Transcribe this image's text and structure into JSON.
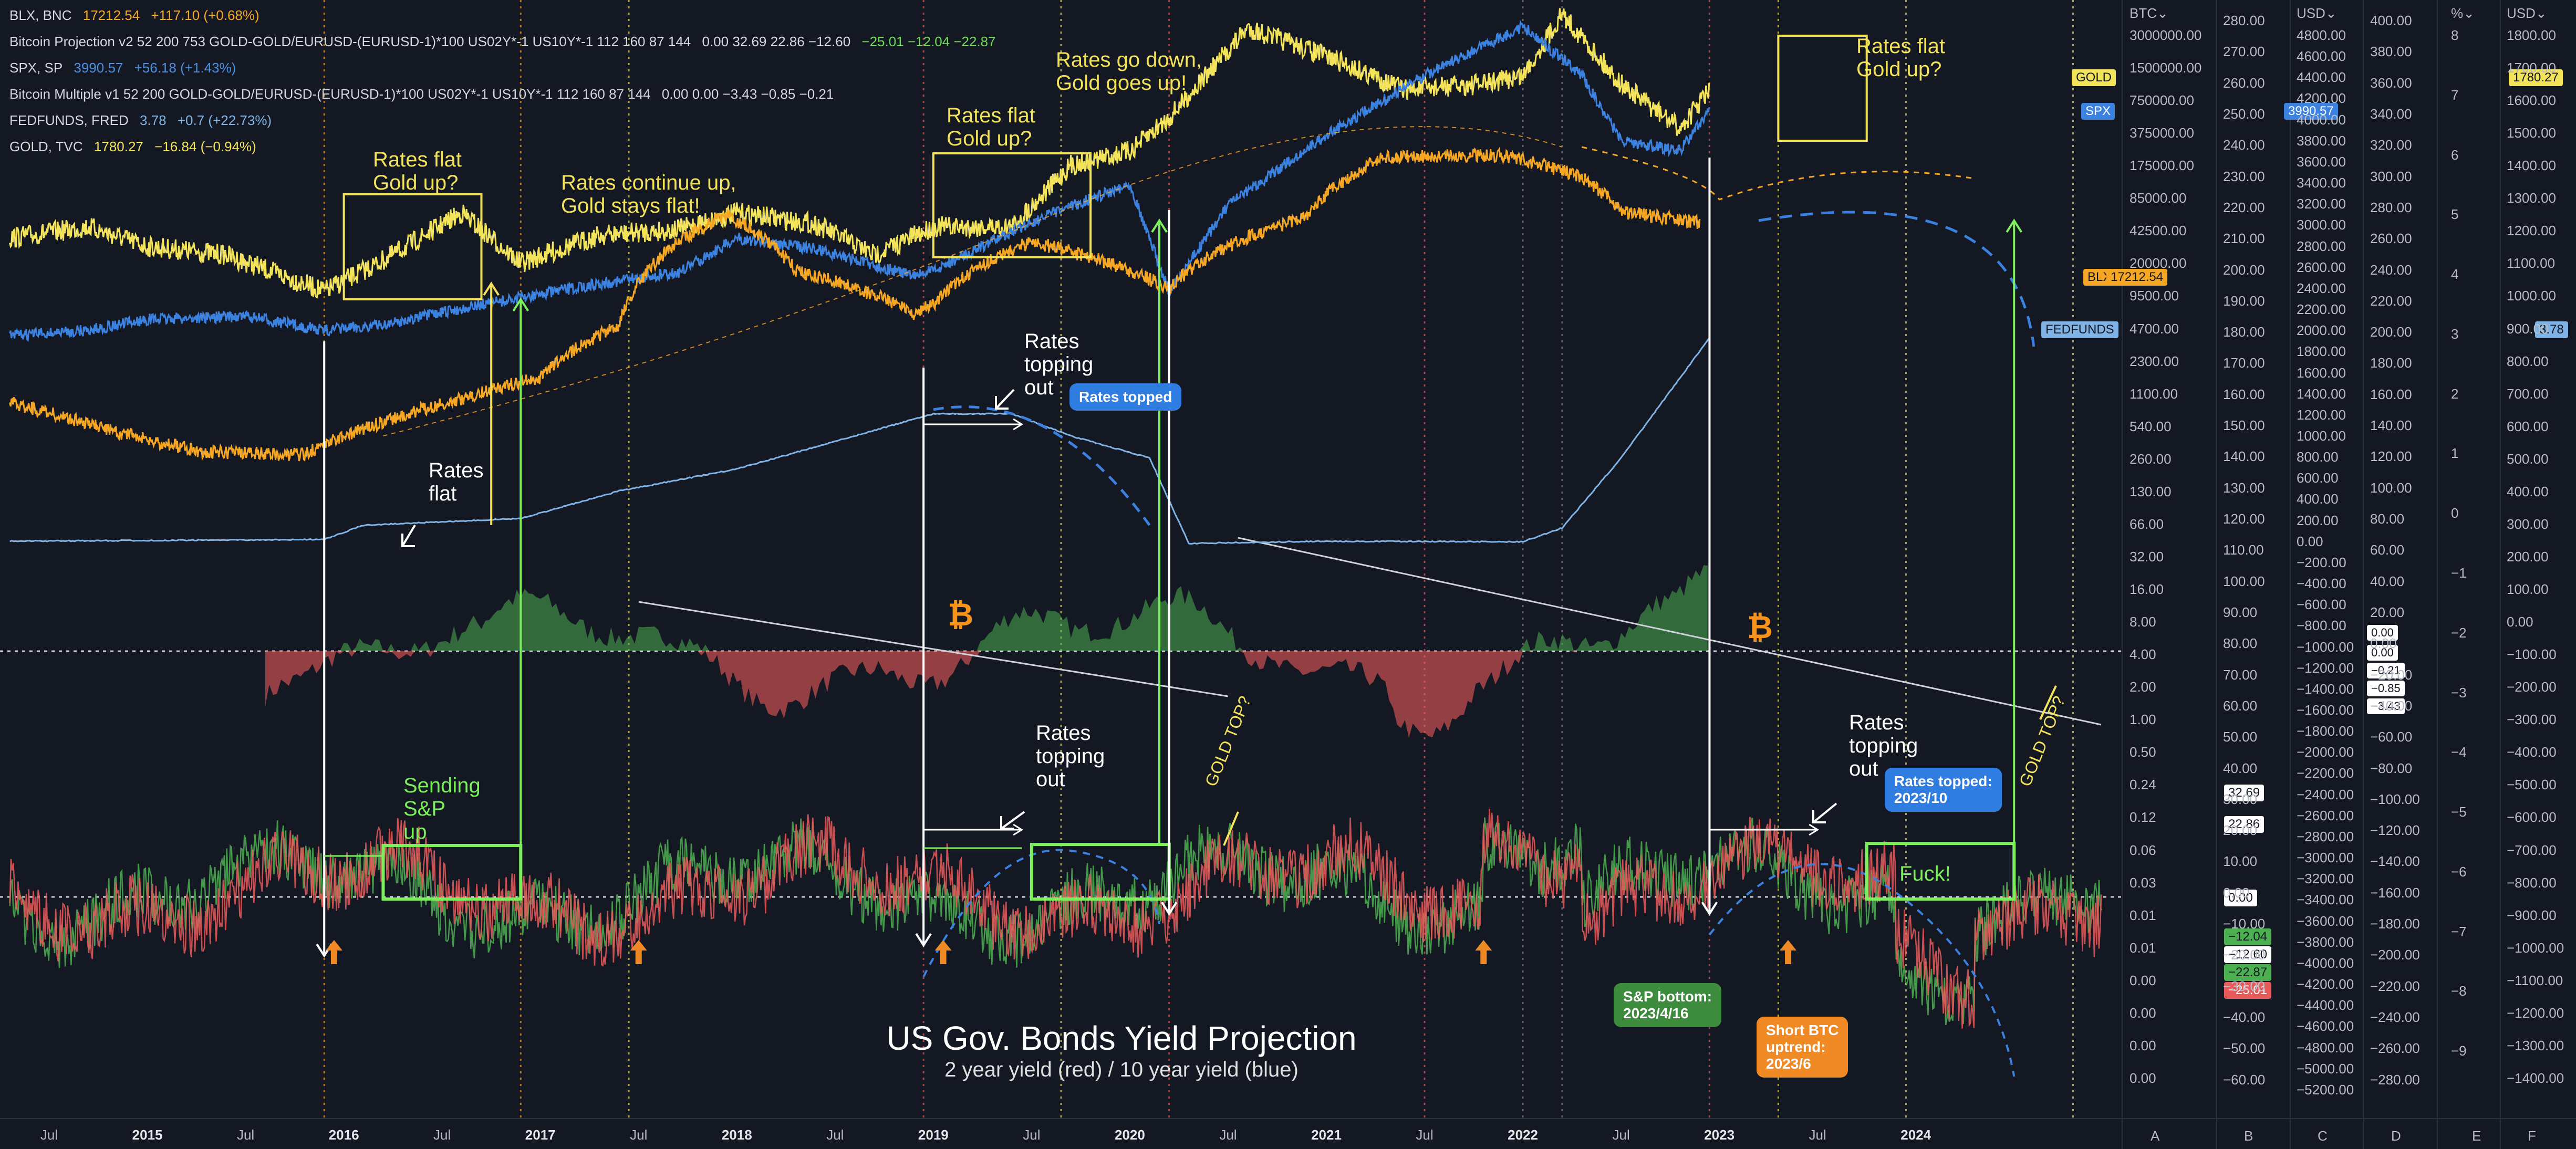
{
  "legend": [
    {
      "name": "BLX, BNC",
      "value": "17212.54",
      "change": "+117.10 (+0.68%)",
      "color": "#f5a623"
    },
    {
      "name": "Bitcoin Projection v2 52 200 753 GOLD-GOLD/EURUSD-(EURUSD-1)*100 US02Y*-1 US10Y*-1 112 160 87 144",
      "value": "0.00  32.69  22.86  −12.60",
      "change": "−25.01  −12.04  −22.87",
      "color": "#d6d8de"
    },
    {
      "name": "SPX, SP",
      "value": "3990.57",
      "change": "+56.18 (+1.43%)",
      "color": "#4a90e2"
    },
    {
      "name": "Bitcoin Multiple v1 52 200 GOLD-GOLD/EURUSD-(EURUSD-1)*100 US02Y*-1 US10Y*-1 112 160 87 144",
      "value": "0.00  0.00  −3.43  −0.85  −0.21",
      "change": "",
      "color": "#d6d8de"
    },
    {
      "name": "FEDFUNDS, FRED",
      "value": "3.78",
      "change": "+0.7 (+22.73%)",
      "color": "#7fb3e6"
    },
    {
      "name": "GOLD, TVC",
      "value": "1780.27",
      "change": "−16.84 (−0.94%)",
      "color": "#f2e35a"
    }
  ],
  "annotations": {
    "rates_flat_gold_up_1": "Rates flat\nGold up?",
    "rates_continue_up": "Rates continue up,\nGold stays flat!",
    "rates_flat_gold_up_2": "Rates flat\nGold up?",
    "rates_go_down": "Rates go down,\nGold goes up!",
    "rates_flat_gold_up_3": "Rates flat\nGold up?",
    "rates_flat": "Rates\nflat",
    "rates_topping_out_1": "Rates\ntopping\nout",
    "rates_topped": "Rates topped",
    "rates_topping_out_2": "Rates\ntopping\nout",
    "rates_topping_out_3": "Rates\ntopping\nout",
    "rates_topped_2023": "Rates topped:\n2023/10",
    "sending_sp_up": "Sending\nS&P\nup",
    "fuck": "Fuck!",
    "gold_top_1": "GOLD TOP?",
    "gold_top_2": "GOLD TOP?",
    "sp_bottom": "S&P bottom:\n2023/4/16",
    "short_btc": "Short BTC\nuptrend:\n2023/6"
  },
  "title": "US Gov. Bonds Yield Projection",
  "subtitle": "2 year yield (red) / 10 year yield (blue)",
  "colors": {
    "background": "#141823",
    "gold": "#f2e35a",
    "spx": "#3b82e0",
    "blx": "#f5a623",
    "fedfunds": "#7fb3e6",
    "bull": "#4caf50",
    "bear": "#e85a5a",
    "highlight_green": "#7cf05a",
    "callout_blue": "#2f7de1",
    "callout_green": "#3d8b3d",
    "callout_orange": "#f08a24"
  },
  "price_tags": {
    "gold": {
      "label": "GOLD",
      "value": "1780.27"
    },
    "spx": {
      "label": "SPX",
      "value": "3990.57"
    },
    "blx": {
      "label": "BLX",
      "value": "17212.54"
    },
    "fedfunds": {
      "label": "FEDFUNDS",
      "value": "3.78"
    }
  },
  "indicator_values": [
    "32.69",
    "22.86",
    "0.00",
    "−12.04",
    "−12.60",
    "−22.87",
    "−25.01"
  ],
  "multiple_values": [
    "0.00",
    "0.00",
    "−0.21",
    "−0.85",
    "−3.43"
  ],
  "scales": [
    {
      "header": "BTC",
      "ticks": [
        "3000000.00",
        "1500000.00",
        "750000.00",
        "375000.00",
        "175000.00",
        "85000.00",
        "42500.00",
        "20000.00",
        "9500.00",
        "4700.00",
        "2300.00",
        "1100.00",
        "540.00",
        "260.00",
        "130.00",
        "66.00",
        "32.00",
        "16.00",
        "8.00",
        "4.00",
        "2.00",
        "1.00",
        "0.50",
        "0.24",
        "0.12",
        "0.06",
        "0.03",
        "0.01",
        "0.01",
        "0.00",
        "0.00",
        "0.00",
        "0.00"
      ],
      "footer": "A"
    },
    {
      "header": "",
      "ticks": [
        "280.00",
        "270.00",
        "260.00",
        "250.00",
        "240.00",
        "230.00",
        "220.00",
        "210.00",
        "200.00",
        "190.00",
        "180.00",
        "170.00",
        "160.00",
        "150.00",
        "140.00",
        "130.00",
        "120.00",
        "110.00",
        "100.00",
        "90.00",
        "80.00",
        "70.00",
        "60.00",
        "50.00",
        "40.00",
        "30.00",
        "20.00",
        "10.00",
        "0.00",
        "−10.00",
        "−20.00",
        "−30.00",
        "−40.00",
        "−50.00",
        "−60.00"
      ],
      "footer": "B"
    },
    {
      "header": "USD",
      "ticks": [
        "4800.00",
        "4600.00",
        "4400.00",
        "4200.00",
        "4000.00",
        "3800.00",
        "3600.00",
        "3400.00",
        "3200.00",
        "3000.00",
        "2800.00",
        "2600.00",
        "2400.00",
        "2200.00",
        "2000.00",
        "1800.00",
        "1600.00",
        "1400.00",
        "1200.00",
        "1000.00",
        "800.00",
        "600.00",
        "400.00",
        "200.00",
        "0.00",
        "−200.00",
        "−400.00",
        "−600.00",
        "−800.00",
        "−1000.00",
        "−1200.00",
        "−1400.00",
        "−1600.00",
        "−1800.00",
        "−2000.00",
        "−2200.00",
        "−2400.00",
        "−2600.00",
        "−2800.00",
        "−3000.00",
        "−3200.00",
        "−3400.00",
        "−3600.00",
        "−3800.00",
        "−4000.00",
        "−4200.00",
        "−4400.00",
        "−4600.00",
        "−4800.00",
        "−5000.00",
        "−5200.00"
      ],
      "footer": "C"
    },
    {
      "header": "",
      "ticks": [
        "400.00",
        "380.00",
        "360.00",
        "340.00",
        "320.00",
        "300.00",
        "280.00",
        "260.00",
        "240.00",
        "220.00",
        "200.00",
        "180.00",
        "160.00",
        "140.00",
        "120.00",
        "100.00",
        "80.00",
        "60.00",
        "40.00",
        "20.00",
        "0.00",
        "−20.00",
        "−40.00",
        "−60.00",
        "−80.00",
        "−100.00",
        "−120.00",
        "−140.00",
        "−160.00",
        "−180.00",
        "−200.00",
        "−220.00",
        "−240.00",
        "−260.00",
        "−280.00"
      ],
      "footer": "D"
    },
    {
      "header": "%",
      "ticks": [
        "8",
        "7",
        "6",
        "5",
        "4",
        "3",
        "2",
        "1",
        "0",
        "−1",
        "−2",
        "−3",
        "−4",
        "−5",
        "−6",
        "−7",
        "−8",
        "−9"
      ],
      "footer": "E"
    },
    {
      "header": "USD",
      "ticks": [
        "1800.00",
        "1700.00",
        "1600.00",
        "1500.00",
        "1400.00",
        "1300.00",
        "1200.00",
        "1100.00",
        "1000.00",
        "900.00",
        "800.00",
        "700.00",
        "600.00",
        "500.00",
        "400.00",
        "300.00",
        "200.00",
        "100.00",
        "0.00",
        "−100.00",
        "−200.00",
        "−300.00",
        "−400.00",
        "−500.00",
        "−600.00",
        "−700.00",
        "−800.00",
        "−900.00",
        "−1000.00",
        "−1100.00",
        "−1200.00",
        "−1300.00",
        "−1400.00"
      ],
      "footer": "F"
    }
  ],
  "chart_data": {
    "type": "line",
    "title": "US Gov. Bonds Yield Projection",
    "subtitle": "2 year yield (red) / 10 year yield (blue)",
    "xlabel": "",
    "ylabel": "",
    "x_ticks": [
      {
        "label": "Jul",
        "year": false
      },
      {
        "label": "2015",
        "year": true
      },
      {
        "label": "Jul",
        "year": false
      },
      {
        "label": "2016",
        "year": true
      },
      {
        "label": "Jul",
        "year": false
      },
      {
        "label": "2017",
        "year": true
      },
      {
        "label": "Jul",
        "year": false
      },
      {
        "label": "2018",
        "year": true
      },
      {
        "label": "Jul",
        "year": false
      },
      {
        "label": "2019",
        "year": true
      },
      {
        "label": "Jul",
        "year": false
      },
      {
        "label": "2020",
        "year": true
      },
      {
        "label": "Jul",
        "year": false
      },
      {
        "label": "2021",
        "year": true
      },
      {
        "label": "Jul",
        "year": false
      },
      {
        "label": "2022",
        "year": true
      },
      {
        "label": "Jul",
        "year": false
      },
      {
        "label": "2023",
        "year": true
      },
      {
        "label": "Jul",
        "year": false
      },
      {
        "label": "2024",
        "year": true
      }
    ],
    "x_range": [
      2014.25,
      2025.05
    ],
    "x_tick_positions": [
      2014.5,
      2015.0,
      2015.5,
      2016.0,
      2016.5,
      2017.0,
      2017.5,
      2018.0,
      2018.5,
      2019.0,
      2019.5,
      2020.0,
      2020.5,
      2021.0,
      2021.5,
      2022.0,
      2022.5,
      2023.0,
      2023.5,
      2024.0
    ],
    "series": [
      {
        "name": "GOLD, TVC",
        "unit": "USD",
        "x": [
          2014.3,
          2014.7,
          2015.0,
          2015.4,
          2015.9,
          2016.2,
          2016.6,
          2016.9,
          2017.3,
          2017.7,
          2018.0,
          2018.4,
          2018.7,
          2019.0,
          2019.4,
          2019.7,
          2020.0,
          2020.2,
          2020.6,
          2021.0,
          2021.4,
          2021.8,
          2022.0,
          2022.2,
          2022.5,
          2022.8,
          2022.95
        ],
        "y": [
          1250,
          1290,
          1220,
          1190,
          1060,
          1170,
          1340,
          1160,
          1260,
          1280,
          1340,
          1300,
          1190,
          1290,
          1290,
          1510,
          1560,
          1680,
          2000,
          1900,
          1780,
          1800,
          1830,
          2050,
          1800,
          1640,
          1780
        ]
      },
      {
        "name": "SPX, SP",
        "unit": "USD",
        "x": [
          2014.3,
          2014.7,
          2015.0,
          2015.5,
          2015.9,
          2016.2,
          2016.6,
          2016.9,
          2017.3,
          2017.7,
          2018.0,
          2018.4,
          2018.9,
          2019.0,
          2019.5,
          2020.0,
          2020.2,
          2020.5,
          2021.0,
          2021.5,
          2022.0,
          2022.3,
          2022.5,
          2022.8,
          2022.95
        ],
        "y": [
          1900,
          1950,
          2050,
          2080,
          1950,
          2000,
          2150,
          2250,
          2380,
          2480,
          2800,
          2700,
          2450,
          2500,
          2950,
          3300,
          2300,
          3100,
          3750,
          4300,
          4750,
          4300,
          3700,
          3600,
          3990
        ]
      },
      {
        "name": "BLX, BNC",
        "unit": "USD",
        "x": [
          2014.3,
          2014.7,
          2015.0,
          2015.3,
          2015.8,
          2016.2,
          2016.6,
          2017.0,
          2017.4,
          2017.95,
          2018.3,
          2018.9,
          2019.0,
          2019.5,
          2020.2,
          2020.9,
          2021.3,
          2021.9,
          2022.3,
          2022.5,
          2022.9
        ],
        "y": [
          600,
          400,
          300,
          240,
          230,
          420,
          650,
          970,
          2500,
          19500,
          7000,
          3200,
          3700,
          12000,
          5000,
          19000,
          58000,
          60000,
          40000,
          21000,
          17212
        ]
      },
      {
        "name": "FEDFUNDS, FRED",
        "unit": "%",
        "x": [
          2014.3,
          2015.9,
          2016.1,
          2016.9,
          2017.4,
          2018.0,
          2018.5,
          2019.0,
          2019.4,
          2019.7,
          2020.1,
          2020.3,
          2021.0,
          2022.0,
          2022.2,
          2022.5,
          2022.95
        ],
        "y": [
          0.09,
          0.12,
          0.38,
          0.5,
          1.0,
          1.4,
          1.9,
          2.4,
          2.4,
          2.0,
          1.6,
          0.05,
          0.09,
          0.08,
          0.33,
          1.6,
          3.78
        ]
      },
      {
        "name": "2 year yield",
        "unit": "",
        "color": "red",
        "values_range": [
          -25.01,
          32.69
        ]
      },
      {
        "name": "10 year yield",
        "unit": "",
        "color": "blue",
        "values_range": [
          -22.87,
          22.86
        ]
      }
    ],
    "event_lines": [
      2015.9,
      2016.9,
      2017.45,
      2018.95,
      2019.65,
      2020.2,
      2021.5,
      2022.0,
      2022.2,
      2022.95,
      2023.3,
      2023.95,
      2024.8
    ],
    "ylim": [
      0,
      3000000
    ],
    "yscale": "log",
    "grid": false,
    "legend_position": "top-left"
  }
}
